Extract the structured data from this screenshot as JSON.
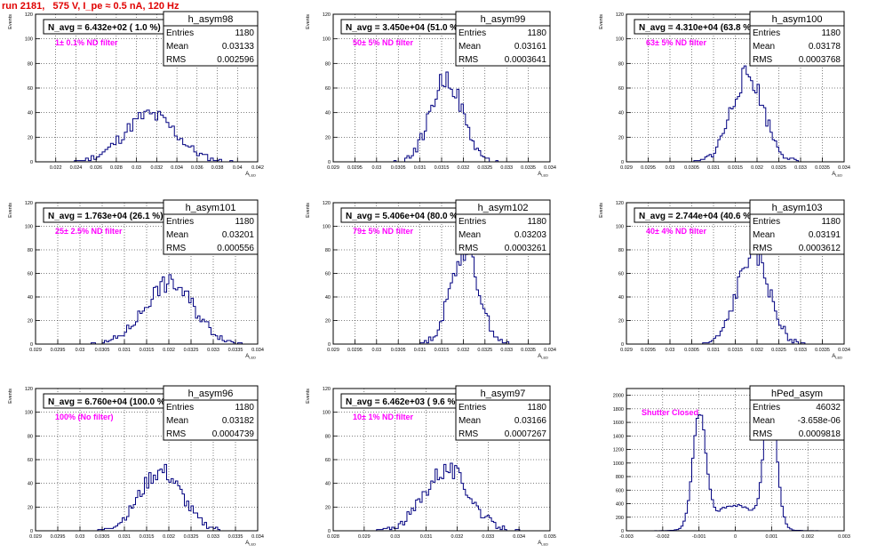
{
  "page": {
    "title": "run 2181,   575 V, I_pe ≈ 0.5 nA, 120 Hz",
    "colors": {
      "title": "#e00000",
      "histogram": "#000080",
      "annotation": "#ff00ff",
      "grid": "#000000"
    }
  },
  "chart_data": [
    {
      "type": "bar",
      "name": "h_asym98",
      "title": "N_avg = 6.432e+02 ( 1.0 %)",
      "note": "1± 0.1% ND filter",
      "stats": [
        [
          "Entries",
          "1180"
        ],
        [
          "Mean",
          "0.03133"
        ],
        [
          "RMS",
          "0.002596"
        ]
      ],
      "xlabel": "A",
      "xlabel_sub": "LED",
      "ylabel": "Events",
      "xlim": [
        0.02,
        0.042
      ],
      "ylim": [
        0,
        120
      ],
      "xticks": [
        0.022,
        0.024,
        0.026,
        0.028,
        0.03,
        0.032,
        0.034,
        0.036,
        0.038,
        0.04,
        0.042
      ],
      "xticklabels": [
        "0.022",
        "0.024",
        "0.026",
        "0.028",
        "0.03",
        "0.032",
        "0.034",
        "0.036",
        "0.038",
        "0.04",
        "0.042"
      ],
      "yticks": [
        0,
        20,
        40,
        60,
        80,
        100,
        120
      ],
      "yticklabels": [
        "0",
        "20",
        "40",
        "60",
        "80",
        "100",
        "120"
      ],
      "hist": {
        "mean": 0.03133,
        "rms": 0.0026,
        "entries": 1180,
        "bins": 80,
        "seed": 11,
        "peak": 38
      }
    },
    {
      "type": "bar",
      "name": "h_asym99",
      "title": "N_avg = 3.450e+04 (51.0 %)",
      "note": "50± 5% ND filter",
      "stats": [
        [
          "Entries",
          "1180"
        ],
        [
          "Mean",
          "0.03161"
        ],
        [
          "RMS",
          "0.0003641"
        ]
      ],
      "xlabel": "A",
      "xlabel_sub": "LED",
      "ylabel": "Events",
      "xlim": [
        0.029,
        0.034
      ],
      "ylim": [
        0,
        120
      ],
      "xticks": [
        0.029,
        0.0295,
        0.03,
        0.0305,
        0.031,
        0.0315,
        0.032,
        0.0325,
        0.033,
        0.0335,
        0.034
      ],
      "xticklabels": [
        "0.029",
        "0.0295",
        "0.03",
        "0.0305",
        "0.031",
        "0.0315",
        "0.032",
        "0.0325",
        "0.033",
        "0.0335",
        "0.034"
      ],
      "yticks": [
        0,
        20,
        40,
        60,
        80,
        100,
        120
      ],
      "yticklabels": [
        "0",
        "20",
        "40",
        "60",
        "80",
        "100",
        "120"
      ],
      "hist": {
        "mean": 0.03161,
        "rms": 0.000364,
        "entries": 1180,
        "bins": 100,
        "seed": 22,
        "peak": 68
      }
    },
    {
      "type": "bar",
      "name": "h_asym100",
      "title": "N_avg = 4.310e+04 (63.8 %)",
      "note": "63± 5% ND filter",
      "stats": [
        [
          "Entries",
          "1180"
        ],
        [
          "Mean",
          "0.03178"
        ],
        [
          "RMS",
          "0.0003768"
        ]
      ],
      "xlabel": "A",
      "xlabel_sub": "LED",
      "ylabel": "Events",
      "xlim": [
        0.029,
        0.034
      ],
      "ylim": [
        0,
        120
      ],
      "xticks": [
        0.029,
        0.0295,
        0.03,
        0.0305,
        0.031,
        0.0315,
        0.032,
        0.0325,
        0.033,
        0.0335,
        0.034
      ],
      "xticklabels": [
        "0.029",
        "0.0295",
        "0.03",
        "0.0305",
        "0.031",
        "0.0315",
        "0.032",
        "0.0325",
        "0.033",
        "0.0335",
        "0.034"
      ],
      "yticks": [
        0,
        20,
        40,
        60,
        80,
        100,
        120
      ],
      "yticklabels": [
        "0",
        "20",
        "40",
        "60",
        "80",
        "100",
        "120"
      ],
      "hist": {
        "mean": 0.03178,
        "rms": 0.000377,
        "entries": 1180,
        "bins": 100,
        "seed": 33,
        "peak": 70
      }
    },
    {
      "type": "bar",
      "name": "h_asym101",
      "title": "N_avg = 1.763e+04 (26.1 %)",
      "note": "25± 2.5% ND filter",
      "stats": [
        [
          "Entries",
          "1180"
        ],
        [
          "Mean",
          "0.03201"
        ],
        [
          "RMS",
          "0.000556"
        ]
      ],
      "xlabel": "A",
      "xlabel_sub": "LED",
      "ylabel": "Events",
      "xlim": [
        0.029,
        0.034
      ],
      "ylim": [
        0,
        120
      ],
      "xticks": [
        0.029,
        0.0295,
        0.03,
        0.0305,
        0.031,
        0.0315,
        0.032,
        0.0325,
        0.033,
        0.0335,
        0.034
      ],
      "xticklabels": [
        "0.029",
        "0.0295",
        "0.03",
        "0.0305",
        "0.031",
        "0.0315",
        "0.032",
        "0.0325",
        "0.033",
        "0.0335",
        "0.034"
      ],
      "yticks": [
        0,
        20,
        40,
        60,
        80,
        100,
        120
      ],
      "yticklabels": [
        "0",
        "20",
        "40",
        "60",
        "80",
        "100",
        "120"
      ],
      "hist": {
        "mean": 0.03201,
        "rms": 0.000556,
        "entries": 1180,
        "bins": 100,
        "seed": 44,
        "peak": 52
      }
    },
    {
      "type": "bar",
      "name": "h_asym102",
      "title": "N_avg = 5.406e+04 (80.0 %)",
      "note": "79± 5% ND filter",
      "stats": [
        [
          "Entries",
          "1180"
        ],
        [
          "Mean",
          "0.03203"
        ],
        [
          "RMS",
          "0.0003261"
        ]
      ],
      "xlabel": "A",
      "xlabel_sub": "LED",
      "ylabel": "Events",
      "xlim": [
        0.029,
        0.034
      ],
      "ylim": [
        0,
        120
      ],
      "xticks": [
        0.029,
        0.0295,
        0.03,
        0.0305,
        0.031,
        0.0315,
        0.032,
        0.0325,
        0.033,
        0.0335,
        0.034
      ],
      "xticklabels": [
        "0.029",
        "0.0295",
        "0.03",
        "0.0305",
        "0.031",
        "0.0315",
        "0.032",
        "0.0325",
        "0.033",
        "0.0335",
        "0.034"
      ],
      "yticks": [
        0,
        20,
        40,
        60,
        80,
        100,
        120
      ],
      "yticklabels": [
        "0",
        "20",
        "40",
        "60",
        "80",
        "100",
        "120"
      ],
      "hist": {
        "mean": 0.03203,
        "rms": 0.000326,
        "entries": 1180,
        "bins": 100,
        "seed": 55,
        "peak": 80
      }
    },
    {
      "type": "bar",
      "name": "h_asym103",
      "title": "N_avg = 2.744e+04 (40.6 %)",
      "note": "40± 4% ND filter",
      "stats": [
        [
          "Entries",
          "1180"
        ],
        [
          "Mean",
          "0.03191"
        ],
        [
          "RMS",
          "0.0003612"
        ]
      ],
      "xlabel": "A",
      "xlabel_sub": "LED",
      "ylabel": "Events",
      "xlim": [
        0.029,
        0.034
      ],
      "ylim": [
        0,
        120
      ],
      "xticks": [
        0.029,
        0.0295,
        0.03,
        0.0305,
        0.031,
        0.0315,
        0.032,
        0.0325,
        0.033,
        0.0335,
        0.034
      ],
      "xticklabels": [
        "0.029",
        "0.0295",
        "0.03",
        "0.0305",
        "0.031",
        "0.0315",
        "0.032",
        "0.0325",
        "0.033",
        "0.0335",
        "0.034"
      ],
      "yticks": [
        0,
        20,
        40,
        60,
        80,
        100,
        120
      ],
      "yticklabels": [
        "0",
        "20",
        "40",
        "60",
        "80",
        "100",
        "120"
      ],
      "hist": {
        "mean": 0.03191,
        "rms": 0.000361,
        "entries": 1180,
        "bins": 100,
        "seed": 66,
        "peak": 78
      }
    },
    {
      "type": "bar",
      "name": "h_asym96",
      "title": "N_avg = 6.760e+04 (100.0 %)",
      "note": "100% (No filter)",
      "stats": [
        [
          "Entries",
          "1180"
        ],
        [
          "Mean",
          "0.03182"
        ],
        [
          "RMS",
          "0.0004739"
        ]
      ],
      "xlabel": "A",
      "xlabel_sub": "LED",
      "ylabel": "Events",
      "xlim": [
        0.029,
        0.034
      ],
      "ylim": [
        0,
        120
      ],
      "xticks": [
        0.029,
        0.0295,
        0.03,
        0.0305,
        0.031,
        0.0315,
        0.032,
        0.0325,
        0.033,
        0.0335,
        0.034
      ],
      "xticklabels": [
        "0.029",
        "0.0295",
        "0.03",
        "0.0305",
        "0.031",
        "0.0315",
        "0.032",
        "0.0325",
        "0.033",
        "0.0335",
        "0.034"
      ],
      "yticks": [
        0,
        20,
        40,
        60,
        80,
        100,
        120
      ],
      "yticklabels": [
        "0",
        "20",
        "40",
        "60",
        "80",
        "100",
        "120"
      ],
      "hist": {
        "mean": 0.03182,
        "rms": 0.000474,
        "entries": 1180,
        "bins": 100,
        "seed": 77,
        "peak": 50
      }
    },
    {
      "type": "bar",
      "name": "h_asym97",
      "title": "N_avg = 6.462e+03 ( 9.6 %)",
      "note": "10± 1% ND filter",
      "stats": [
        [
          "Entries",
          "1180"
        ],
        [
          "Mean",
          "0.03166"
        ],
        [
          "RMS",
          "0.0007267"
        ]
      ],
      "xlabel": "A",
      "xlabel_sub": "LED",
      "ylabel": "Events",
      "xlim": [
        0.028,
        0.035
      ],
      "ylim": [
        0,
        120
      ],
      "xticks": [
        0.028,
        0.029,
        0.03,
        0.031,
        0.032,
        0.033,
        0.034,
        0.035
      ],
      "xticklabels": [
        "0.028",
        "0.029",
        "0.03",
        "0.031",
        "0.032",
        "0.033",
        "0.034",
        "0.035"
      ],
      "yticks": [
        0,
        20,
        40,
        60,
        80,
        100,
        120
      ],
      "yticklabels": [
        "0",
        "20",
        "40",
        "60",
        "80",
        "100",
        "120"
      ],
      "hist": {
        "mean": 0.03166,
        "rms": 0.000727,
        "entries": 1180,
        "bins": 100,
        "seed": 88,
        "peak": 52
      }
    },
    {
      "type": "bar",
      "name": "hPed_asym",
      "title": "",
      "note": "Shutter Closed",
      "stats": [
        [
          "Entries",
          "46032"
        ],
        [
          "Mean",
          "-3.658e-06"
        ],
        [
          "RMS",
          "0.0009818"
        ]
      ],
      "xlabel": "",
      "xlabel_sub": "",
      "ylabel": "",
      "xlim": [
        -0.003,
        0.003
      ],
      "ylim": [
        0,
        2100
      ],
      "xticks": [
        -0.003,
        -0.002,
        -0.001,
        0,
        0.001,
        0.002,
        0.003
      ],
      "xticklabels": [
        "-0.003",
        "-0.002",
        "-0.001",
        "0",
        "0.001",
        "0.002",
        "0.003"
      ],
      "yticks": [
        0,
        200,
        400,
        600,
        800,
        1000,
        1200,
        1400,
        1600,
        1800,
        2000
      ],
      "yticklabels": [
        "0",
        "200",
        "400",
        "600",
        "800",
        "1000",
        "1200",
        "1400",
        "1600",
        "1800",
        "2000"
      ],
      "hist": {
        "mean": 0.0,
        "rms": 0.00098,
        "entries": 46032,
        "bins": 100,
        "seed": 99,
        "peak": 1950,
        "components": [
          {
            "mu": -0.00099,
            "sigma": 0.00018,
            "amp": 1650
          },
          {
            "mu": 0.00097,
            "sigma": 0.00017,
            "amp": 1950
          },
          {
            "mu": 0.0,
            "sigma": 0.0006,
            "amp": 380
          }
        ]
      }
    }
  ]
}
